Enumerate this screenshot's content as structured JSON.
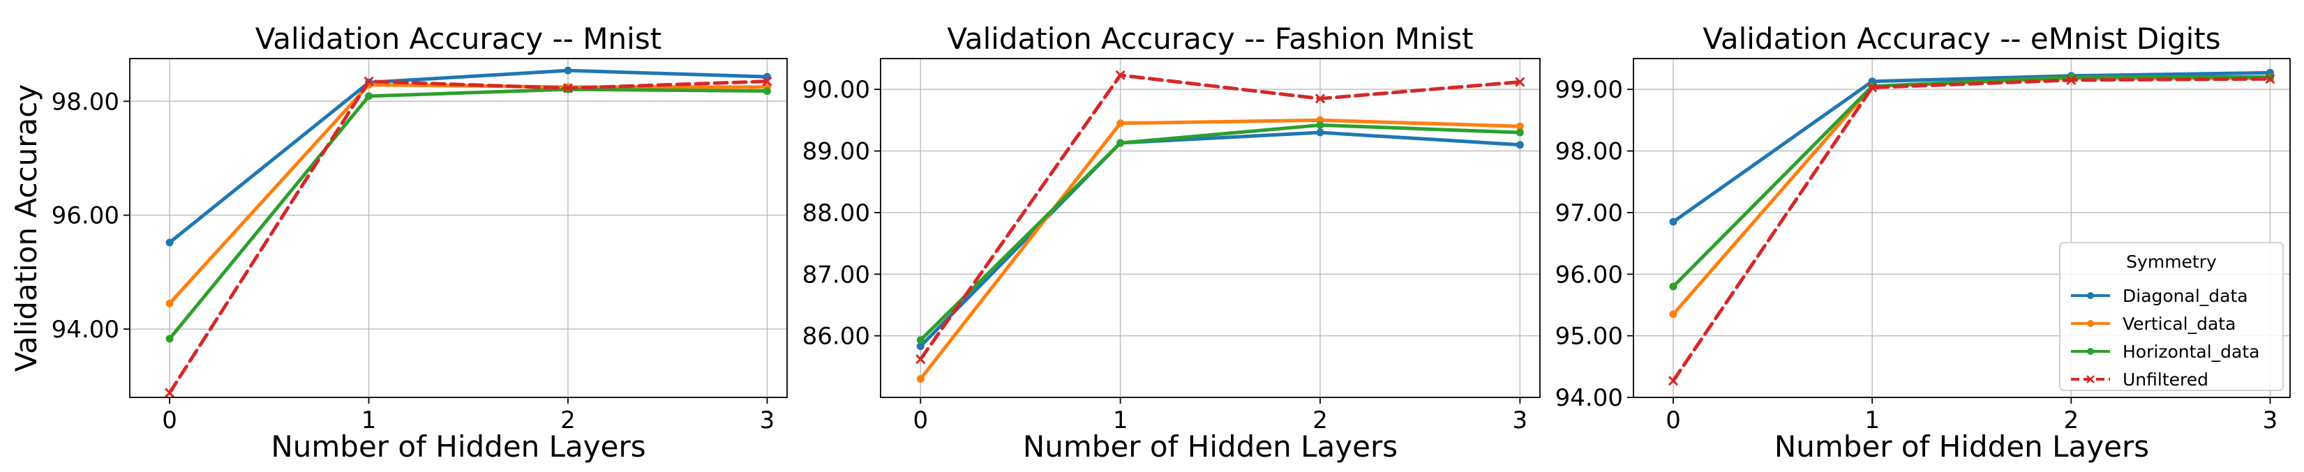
{
  "chart_data": [
    {
      "type": "line",
      "title": "Validation Accuracy -- Mnist",
      "xlabel": "Number of Hidden Layers",
      "ylabel": "Validation Accuracy",
      "x": [
        0,
        1,
        2,
        3
      ],
      "xlim": [
        -0.2,
        3.1
      ],
      "ylim": [
        92.8,
        98.75
      ],
      "yticks": [
        94.0,
        96.0,
        98.0
      ],
      "ytick_labels": [
        "94.00",
        "96.00",
        "98.00"
      ],
      "grid": true,
      "legend": "",
      "series": [
        {
          "name": "Diagonal_data",
          "values": [
            95.52,
            98.33,
            98.54,
            98.43
          ],
          "color": "#1f77b4",
          "dash": false,
          "marker": "dot"
        },
        {
          "name": "Vertical_data",
          "values": [
            94.45,
            98.29,
            98.25,
            98.25
          ],
          "color": "#ff7f0e",
          "dash": false,
          "marker": "dot"
        },
        {
          "name": "Horizontal_data",
          "values": [
            93.83,
            98.09,
            98.21,
            98.18
          ],
          "color": "#2ca02c",
          "dash": false,
          "marker": "dot"
        },
        {
          "name": "Unfiltered",
          "values": [
            92.88,
            98.35,
            98.23,
            98.35
          ],
          "color": "#d62728",
          "dash": true,
          "marker": "x"
        }
      ]
    },
    {
      "type": "line",
      "title": "Validation Accuracy -- Fashion Mnist",
      "xlabel": "Number of Hidden Layers",
      "ylabel": "",
      "x": [
        0,
        1,
        2,
        3
      ],
      "xlim": [
        -0.2,
        3.1
      ],
      "ylim": [
        85.0,
        90.5
      ],
      "yticks": [
        86.0,
        87.0,
        88.0,
        89.0,
        90.0
      ],
      "ytick_labels": [
        "86.00",
        "87.00",
        "88.00",
        "89.00",
        "90.00"
      ],
      "grid": true,
      "legend": "",
      "series": [
        {
          "name": "Diagonal_data",
          "values": [
            85.83,
            89.13,
            89.3,
            89.1
          ],
          "color": "#1f77b4",
          "dash": false,
          "marker": "dot"
        },
        {
          "name": "Vertical_data",
          "values": [
            85.3,
            89.45,
            89.5,
            89.4
          ],
          "color": "#ff7f0e",
          "dash": false,
          "marker": "dot"
        },
        {
          "name": "Horizontal_data",
          "values": [
            85.93,
            89.13,
            89.42,
            89.3
          ],
          "color": "#2ca02c",
          "dash": false,
          "marker": "dot"
        },
        {
          "name": "Unfiltered",
          "values": [
            85.62,
            90.23,
            89.85,
            90.12
          ],
          "color": "#d62728",
          "dash": true,
          "marker": "x"
        }
      ]
    },
    {
      "type": "line",
      "title": "Validation Accuracy -- eMnist Digits",
      "xlabel": "Number of Hidden Layers",
      "ylabel": "",
      "x": [
        0,
        1,
        2,
        3
      ],
      "xlim": [
        -0.2,
        3.1
      ],
      "ylim": [
        94.0,
        99.5
      ],
      "yticks": [
        94.0,
        95.0,
        96.0,
        97.0,
        98.0,
        99.0
      ],
      "ytick_labels": [
        "94.00",
        "95.00",
        "96.00",
        "97.00",
        "98.00",
        "99.00"
      ],
      "grid": true,
      "legend": "lower-right",
      "legend_title": "Symmetry",
      "series": [
        {
          "name": "Diagonal_data",
          "values": [
            96.85,
            99.13,
            99.22,
            99.27
          ],
          "color": "#1f77b4",
          "dash": false,
          "marker": "dot"
        },
        {
          "name": "Vertical_data",
          "values": [
            95.35,
            99.05,
            99.18,
            99.18
          ],
          "color": "#ff7f0e",
          "dash": false,
          "marker": "dot"
        },
        {
          "name": "Horizontal_data",
          "values": [
            95.8,
            99.05,
            99.2,
            99.2
          ],
          "color": "#2ca02c",
          "dash": false,
          "marker": "dot"
        },
        {
          "name": "Unfiltered",
          "values": [
            94.27,
            99.03,
            99.15,
            99.17
          ],
          "color": "#d62728",
          "dash": true,
          "marker": "x"
        }
      ]
    }
  ]
}
